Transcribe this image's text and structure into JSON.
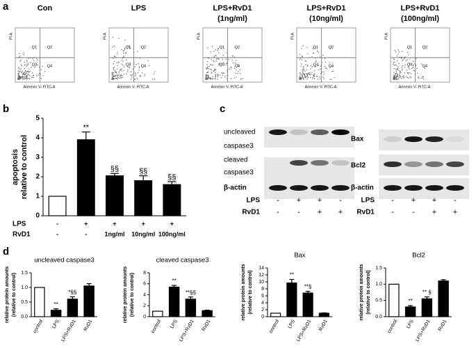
{
  "figure": {
    "panel_labels": [
      "a",
      "b",
      "c",
      "d"
    ],
    "flow": [
      {
        "title": [
          "Con"
        ]
      },
      {
        "title": [
          "LPS"
        ]
      },
      {
        "title": [
          "LPS+RvD1",
          "(1ng/ml)"
        ]
      },
      {
        "title": [
          "LPS+RvD1",
          "(10ng/ml)"
        ]
      },
      {
        "title": [
          "LPS+RvD1",
          "(100ng/ml)"
        ]
      }
    ],
    "flow_y_label": "PI-A",
    "flow_x_label": "Annexin V- FITC-A",
    "quadrants": [
      "Q1",
      "Q2",
      "Q3",
      "Q4"
    ],
    "blots": {
      "left_labels": [
        "uncleaved",
        "caspase3",
        "cleaved",
        "caspase3",
        "β-actin"
      ],
      "right_labels": [
        "Bax",
        "Bcl2",
        "β-actin"
      ],
      "rows": [
        {
          "name": "LPS",
          "values": [
            "-",
            "+",
            "+",
            "-"
          ]
        },
        {
          "name": "RvD1",
          "values": [
            "-",
            "-",
            "+",
            "+"
          ]
        }
      ]
    }
  },
  "chart_data": [
    {
      "type": "bar",
      "ylabel": [
        "apoptosis",
        "relative to control"
      ],
      "values": [
        1,
        3.9,
        2.05,
        1.8,
        1.6
      ],
      "errors": [
        0,
        0.4,
        0.12,
        0.25,
        0.15
      ],
      "annotations": [
        null,
        "**",
        "§§",
        "§§",
        "§§"
      ],
      "colors": [
        "#ffffff",
        "#000000",
        "#000000",
        "#000000",
        "#000000"
      ],
      "ylim": [
        0,
        5
      ],
      "yticks": [
        0,
        1,
        2,
        3,
        4,
        5
      ],
      "rows": [
        {
          "name": "LPS",
          "values": [
            "-",
            "+",
            "+",
            "+",
            "+"
          ]
        },
        {
          "name": "RvD1",
          "values": [
            "-",
            "-",
            "1ng/ml",
            "10ng/ml",
            "100ng/ml"
          ]
        }
      ]
    },
    {
      "type": "bar",
      "title": "uncleaved caspase3",
      "ylabel": [
        "relative protein amounts",
        "(relative to control)"
      ],
      "categories": [
        "control",
        "LPS",
        "LPS+RvD1",
        "RvD1"
      ],
      "values": [
        1,
        0.22,
        0.6,
        1.05
      ],
      "errors": [
        0,
        0.05,
        0.08,
        0.08
      ],
      "annotations": [
        null,
        "**",
        "*§§",
        null
      ],
      "colors": [
        "#ffffff",
        "#000000",
        "#000000",
        "#000000"
      ],
      "ylim": [
        0,
        1.5
      ],
      "yticks": [
        {
          "value": 0,
          "label": "0.0"
        },
        0.5,
        {
          "value": 1,
          "label": "1.0"
        },
        1.5
      ]
    },
    {
      "type": "bar",
      "title": "cleaved caspase3",
      "ylabel": [
        "relative protein amounts",
        "(relative to control)"
      ],
      "categories": [
        "control",
        "LPS",
        "LPS+RvD1",
        "RvD1"
      ],
      "values": [
        1,
        5.4,
        3.2,
        1.1
      ],
      "errors": [
        0,
        0.3,
        0.4,
        0.1
      ],
      "annotations": [
        null,
        "**",
        "**§§",
        null
      ],
      "colors": [
        "#ffffff",
        "#000000",
        "#000000",
        "#000000"
      ],
      "ylim": [
        0,
        8
      ],
      "yticks": [
        0,
        2,
        4,
        6,
        8
      ]
    },
    {
      "type": "bar",
      "title": "Bax",
      "ylabel": [
        "relative protein amounts",
        "(relative to control)"
      ],
      "categories": [
        "control",
        "LPS",
        "LPS+RvD1",
        "RvD1"
      ],
      "values": [
        1,
        9.7,
        6.8,
        1
      ],
      "errors": [
        0,
        1.0,
        0.5,
        0.1
      ],
      "annotations": [
        null,
        "**",
        "**§",
        null
      ],
      "colors": [
        "#ffffff",
        "#000000",
        "#000000",
        "#000000"
      ],
      "ylim": [
        0,
        14
      ],
      "yticks": [
        0,
        2,
        4,
        6,
        8,
        10,
        12,
        14
      ]
    },
    {
      "type": "bar",
      "title": "Bcl2",
      "ylabel": [
        "relative protein amounts",
        "(relative to control)"
      ],
      "categories": [
        "control",
        "LPS",
        "LPS+RvD1",
        "RvD1"
      ],
      "values": [
        1,
        0.3,
        0.55,
        1.1
      ],
      "errors": [
        0,
        0.04,
        0.06,
        0.04
      ],
      "annotations": [
        null,
        "**",
        "** §",
        null
      ],
      "colors": [
        "#ffffff",
        "#000000",
        "#000000",
        "#000000"
      ],
      "ylim": [
        0,
        1.5
      ],
      "yticks": [
        {
          "value": 0,
          "label": "0.0"
        },
        0.5,
        {
          "value": 1,
          "label": "1.0"
        },
        1.5
      ]
    }
  ]
}
